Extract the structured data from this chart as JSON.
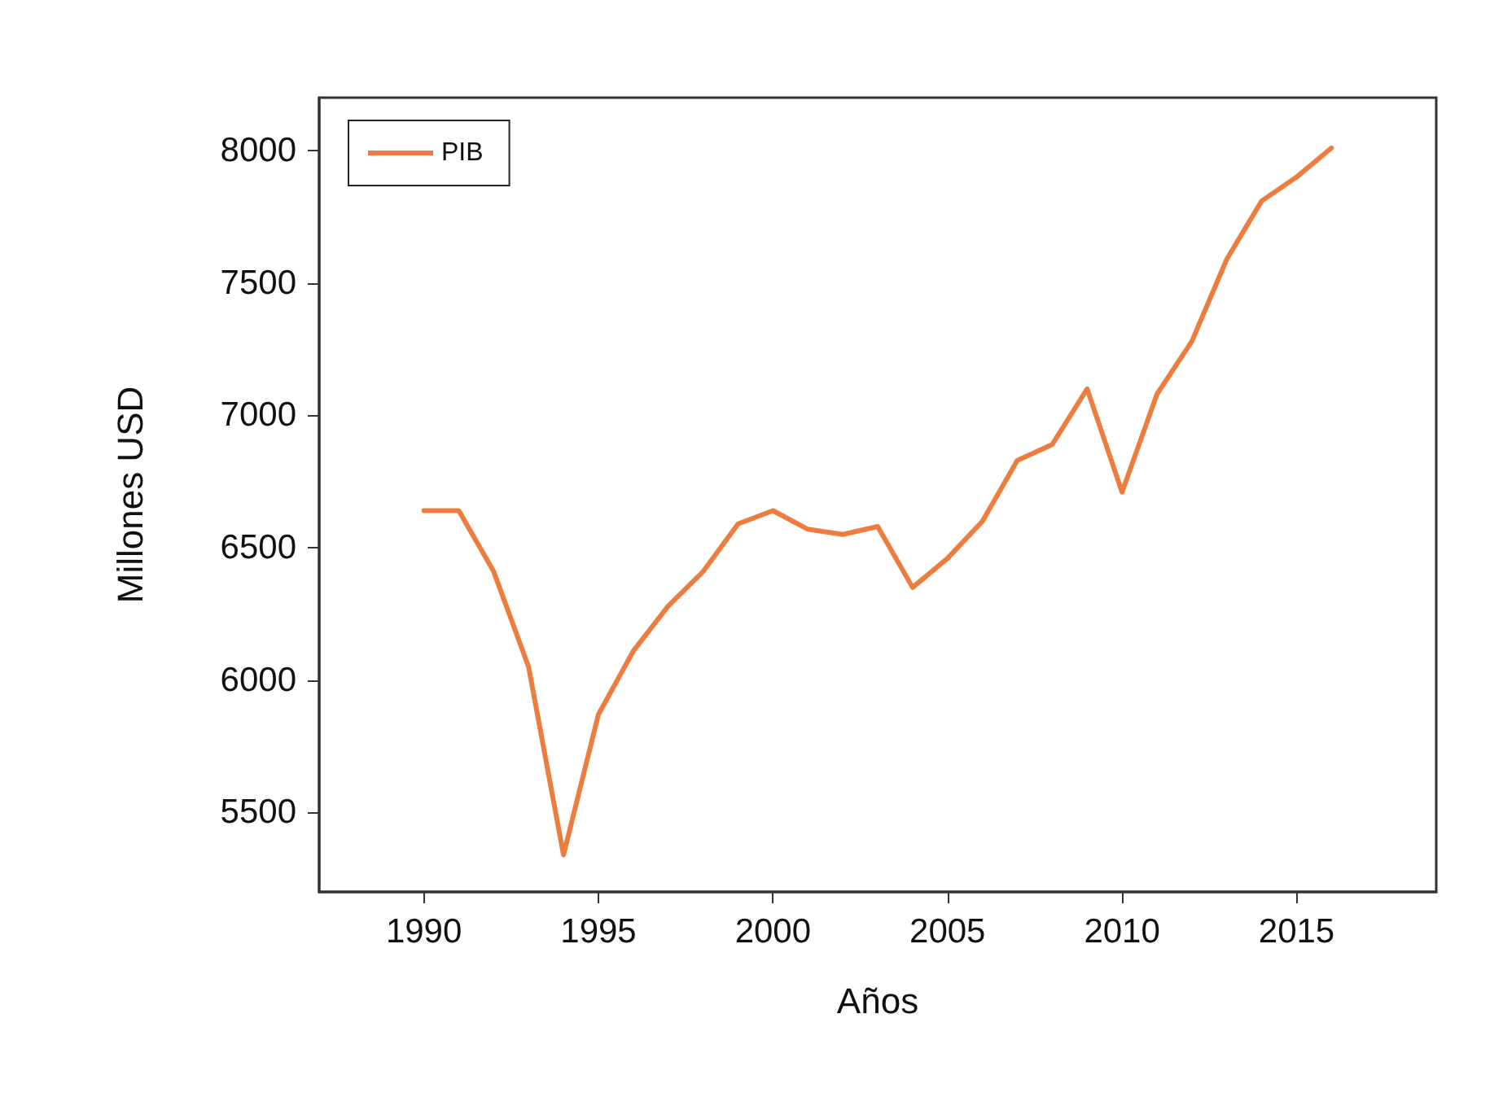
{
  "chart_data": {
    "type": "line",
    "xlabel": "Años",
    "ylabel": "Millones USD",
    "x": [
      1990,
      1991,
      1992,
      1993,
      1994,
      1995,
      1996,
      1997,
      1998,
      1999,
      2000,
      2001,
      2002,
      2003,
      2004,
      2005,
      2006,
      2007,
      2008,
      2009,
      2010,
      2011,
      2012,
      2013,
      2014,
      2015,
      2016
    ],
    "series": [
      {
        "name": "PIB",
        "color": "#ed7d3f",
        "values": [
          6640,
          6640,
          6410,
          6050,
          5340,
          5870,
          6110,
          6280,
          6410,
          6590,
          6640,
          6570,
          6550,
          6580,
          6350,
          6460,
          6600,
          6830,
          6890,
          7100,
          6710,
          7080,
          7280,
          7590,
          7810,
          7900,
          8010
        ]
      }
    ],
    "xlim": [
      1987,
      2019
    ],
    "xticks": [
      1990,
      1995,
      2000,
      2005,
      2010,
      2015
    ],
    "ylim": [
      5200,
      8200
    ],
    "yticks": [
      5500,
      6000,
      6500,
      7000,
      7500,
      8000
    ],
    "grid": false,
    "legend": "top left",
    "marker": "none",
    "line_style": "solid"
  }
}
